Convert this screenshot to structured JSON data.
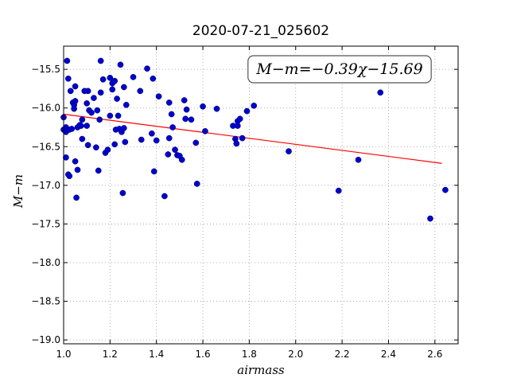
{
  "chart_data": {
    "type": "scatter",
    "title": "2020-07-21_025602",
    "xlabel": "airmass",
    "ylabel": "M−m",
    "xlim": [
      1.0,
      2.7
    ],
    "ylim": [
      -19.05,
      -15.2
    ],
    "y_inverted": true,
    "grid": true,
    "x_ticks": [
      1.0,
      1.2,
      1.4,
      1.6,
      1.8,
      2.0,
      2.2,
      2.4,
      2.6
    ],
    "x_tick_labels": [
      "1.0",
      "1.2",
      "1.4",
      "1.6",
      "1.8",
      "2.0",
      "2.2",
      "2.4",
      "2.6"
    ],
    "y_ticks": [
      -15.5,
      -16.0,
      -16.5,
      -17.0,
      -17.5,
      -18.0,
      -18.5,
      -19.0
    ],
    "y_tick_labels": [
      "−15.5",
      "−16.0",
      "−16.5",
      "−17.0",
      "−17.5",
      "−18.0",
      "−18.5",
      "−19.0"
    ],
    "annotation": "M−m=−0.39χ−15.69",
    "annotation_placement": "top-right",
    "colors": {
      "points": "#0000cc",
      "fit": "#ff0000",
      "grid": "#999999"
    },
    "points": [
      [
        1.0,
        -16.12
      ],
      [
        1.0,
        -16.28
      ],
      [
        1.01,
        -16.25
      ],
      [
        1.01,
        -16.31
      ],
      [
        1.01,
        -16.64
      ],
      [
        1.015,
        -15.39
      ],
      [
        1.02,
        -15.62
      ],
      [
        1.02,
        -16.86
      ],
      [
        1.025,
        -16.88
      ],
      [
        1.025,
        -16.28
      ],
      [
        1.03,
        -15.78
      ],
      [
        1.035,
        -16.27
      ],
      [
        1.04,
        -15.93
      ],
      [
        1.045,
        -15.96
      ],
      [
        1.045,
        -16.01
      ],
      [
        1.05,
        -15.72
      ],
      [
        1.05,
        -15.91
      ],
      [
        1.05,
        -16.69
      ],
      [
        1.055,
        -17.16
      ],
      [
        1.06,
        -16.8
      ],
      [
        1.06,
        -16.25
      ],
      [
        1.07,
        -16.22
      ],
      [
        1.075,
        -16.23
      ],
      [
        1.08,
        -16.15
      ],
      [
        1.08,
        -16.4
      ],
      [
        1.09,
        -15.78
      ],
      [
        1.1,
        -15.94
      ],
      [
        1.1,
        -16.23
      ],
      [
        1.105,
        -15.78
      ],
      [
        1.105,
        -16.48
      ],
      [
        1.11,
        -16.03
      ],
      [
        1.12,
        -16.06
      ],
      [
        1.13,
        -15.87
      ],
      [
        1.14,
        -16.51
      ],
      [
        1.145,
        -16.03
      ],
      [
        1.15,
        -16.81
      ],
      [
        1.155,
        -16.15
      ],
      [
        1.16,
        -15.8
      ],
      [
        1.16,
        -15.39
      ],
      [
        1.17,
        -15.63
      ],
      [
        1.18,
        -16.58
      ],
      [
        1.19,
        -16.54
      ],
      [
        1.2,
        -16.1
      ],
      [
        1.2,
        -15.61
      ],
      [
        1.21,
        -15.68
      ],
      [
        1.21,
        -15.76
      ],
      [
        1.22,
        -15.65
      ],
      [
        1.22,
        -16.47
      ],
      [
        1.225,
        -16.28
      ],
      [
        1.23,
        -15.88
      ],
      [
        1.235,
        -16.1
      ],
      [
        1.24,
        -16.27
      ],
      [
        1.245,
        -15.44
      ],
      [
        1.25,
        -16.31
      ],
      [
        1.255,
        -17.1
      ],
      [
        1.26,
        -15.73
      ],
      [
        1.26,
        -16.26
      ],
      [
        1.265,
        -16.44
      ],
      [
        1.27,
        -15.96
      ],
      [
        1.3,
        -15.6
      ],
      [
        1.33,
        -15.78
      ],
      [
        1.335,
        -16.41
      ],
      [
        1.36,
        -15.49
      ],
      [
        1.38,
        -16.33
      ],
      [
        1.385,
        -15.62
      ],
      [
        1.39,
        -16.82
      ],
      [
        1.4,
        -16.42
      ],
      [
        1.41,
        -15.85
      ],
      [
        1.435,
        -17.14
      ],
      [
        1.45,
        -16.6
      ],
      [
        1.455,
        -16.39
      ],
      [
        1.455,
        -15.93
      ],
      [
        1.465,
        -16.08
      ],
      [
        1.47,
        -16.25
      ],
      [
        1.48,
        -16.54
      ],
      [
        1.49,
        -16.61
      ],
      [
        1.5,
        -16.62
      ],
      [
        1.51,
        -16.67
      ],
      [
        1.52,
        -15.9
      ],
      [
        1.525,
        -16.14
      ],
      [
        1.53,
        -16.02
      ],
      [
        1.55,
        -16.15
      ],
      [
        1.57,
        -16.45
      ],
      [
        1.575,
        -16.98
      ],
      [
        1.6,
        -15.98
      ],
      [
        1.61,
        -16.3
      ],
      [
        1.66,
        -16.01
      ],
      [
        1.73,
        -16.23
      ],
      [
        1.74,
        -16.4
      ],
      [
        1.745,
        -16.46
      ],
      [
        1.75,
        -16.23
      ],
      [
        1.75,
        -16.17
      ],
      [
        1.76,
        -16.14
      ],
      [
        1.77,
        -16.39
      ],
      [
        1.79,
        -16.04
      ],
      [
        1.82,
        -15.97
      ],
      [
        1.97,
        -16.56
      ],
      [
        2.185,
        -17.07
      ],
      [
        2.27,
        -16.67
      ],
      [
        2.365,
        -15.8
      ],
      [
        2.58,
        -17.43
      ],
      [
        2.645,
        -17.06
      ]
    ],
    "fit_line": {
      "slope": -0.39,
      "intercept": -15.69,
      "x_range": [
        1.0,
        2.63
      ]
    }
  }
}
